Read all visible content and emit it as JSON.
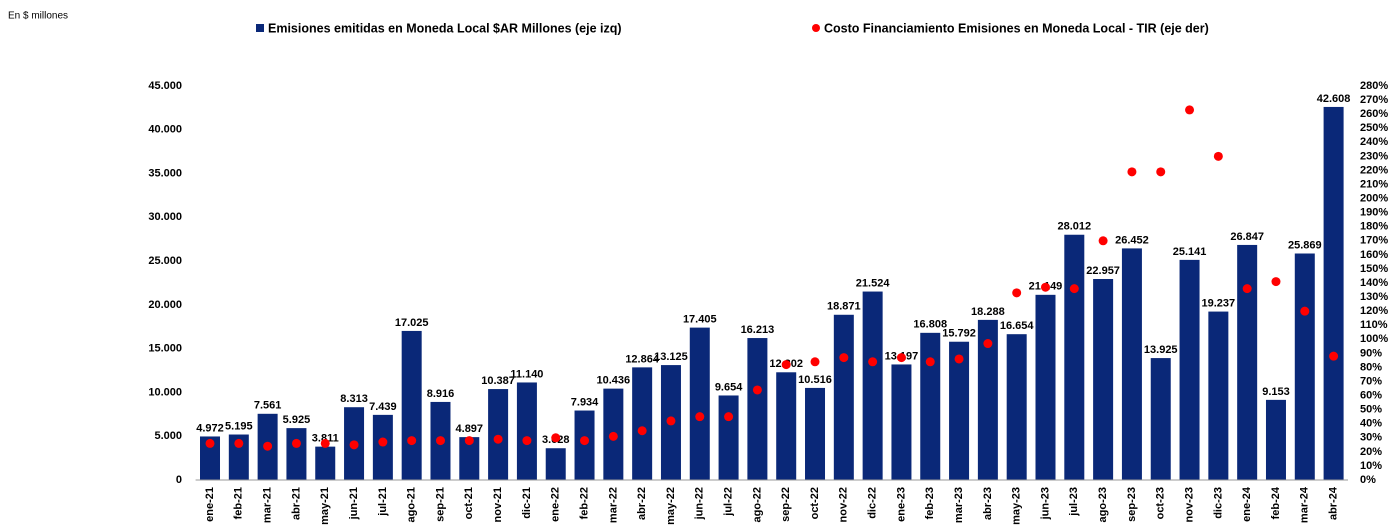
{
  "chart_data": {
    "type": "bar_scatter",
    "subtitle": "En $ millones",
    "categories": [
      "ene-21",
      "feb-21",
      "mar-21",
      "abr-21",
      "may-21",
      "jun-21",
      "jul-21",
      "ago-21",
      "sep-21",
      "oct-21",
      "nov-21",
      "dic-21",
      "ene-22",
      "feb-22",
      "mar-22",
      "abr-22",
      "may-22",
      "jun-22",
      "jul-22",
      "ago-22",
      "sep-22",
      "oct-22",
      "nov-22",
      "dic-22",
      "ene-23",
      "feb-23",
      "mar-23",
      "abr-23",
      "may-23",
      "jun-23",
      "jul-23",
      "ago-23",
      "sep-23",
      "oct-23",
      "nov-23",
      "dic-23",
      "ene-24",
      "feb-24",
      "mar-24",
      "abr-24"
    ],
    "series": [
      {
        "name": "Emisiones emitidas en Moneda Local $AR Millones (eje izq)",
        "color": "#0a2878",
        "kind": "bar",
        "values": [
          4972,
          5195,
          7561,
          5925,
          3811,
          8313,
          7439,
          17025,
          8916,
          4897,
          10387,
          11140,
          3628,
          7934,
          10436,
          12864,
          13125,
          17405,
          9654,
          16213,
          12302,
          10516,
          18871,
          21524,
          13197,
          16808,
          15792,
          18288,
          16654,
          21149,
          28012,
          22957,
          26452,
          13925,
          25141,
          19237,
          26847,
          9153,
          25869,
          42608
        ],
        "value_labels": [
          "4.972",
          "5.195",
          "7.561",
          "5.925",
          "3.811",
          "8.313",
          "7.439",
          "17.025",
          "8.916",
          "4.897",
          "10.387",
          "11.140",
          "3.628",
          "7.934",
          "10.436",
          "12.864",
          "13.125",
          "17.405",
          "9.654",
          "16.213",
          "12.302",
          "10.516",
          "18.871",
          "21.524",
          "13.197",
          "16.808",
          "15.792",
          "18.288",
          "16.654",
          "21.149",
          "28.012",
          "22.957",
          "26.452",
          "13.925",
          "25.141",
          "19.237",
          "26.847",
          "9.153",
          "25.869",
          "42.608"
        ]
      },
      {
        "name": "Costo Financiamiento Emisiones en Moneda Local - TIR (eje der)",
        "color": "#ff0000",
        "kind": "scatter",
        "axis": "y2",
        "values": [
          26,
          26,
          24,
          26,
          26,
          25,
          27,
          28,
          28,
          28,
          29,
          28,
          30,
          28,
          31,
          35,
          42,
          45,
          45,
          64,
          82,
          84,
          87,
          84,
          87,
          84,
          86,
          97,
          133,
          137,
          136,
          170,
          219,
          219,
          263,
          230,
          136,
          141,
          120,
          88
        ]
      }
    ],
    "ylim": [
      0,
      45000
    ],
    "yticks": [
      {
        "value": 0,
        "label": "0"
      },
      {
        "value": 5000,
        "label": "5.000"
      },
      {
        "value": 10000,
        "label": "10.000"
      },
      {
        "value": 15000,
        "label": "15.000"
      },
      {
        "value": 20000,
        "label": "20.000"
      },
      {
        "value": 25000,
        "label": "25.000"
      },
      {
        "value": 30000,
        "label": "30.000"
      },
      {
        "value": 35000,
        "label": "35.000"
      },
      {
        "value": 40000,
        "label": "40.000"
      },
      {
        "value": 45000,
        "label": "45.000"
      }
    ],
    "y2lim": [
      0,
      280
    ],
    "y2ticks": [
      {
        "value": 0,
        "label": "0%"
      },
      {
        "value": 10,
        "label": "10%"
      },
      {
        "value": 20,
        "label": "20%"
      },
      {
        "value": 30,
        "label": "30%"
      },
      {
        "value": 40,
        "label": "40%"
      },
      {
        "value": 50,
        "label": "50%"
      },
      {
        "value": 60,
        "label": "60%"
      },
      {
        "value": 70,
        "label": "70%"
      },
      {
        "value": 80,
        "label": "80%"
      },
      {
        "value": 90,
        "label": "90%"
      },
      {
        "value": 100,
        "label": "100%"
      },
      {
        "value": 110,
        "label": "110%"
      },
      {
        "value": 120,
        "label": "120%"
      },
      {
        "value": 130,
        "label": "130%"
      },
      {
        "value": 140,
        "label": "140%"
      },
      {
        "value": 150,
        "label": "150%"
      },
      {
        "value": 160,
        "label": "160%"
      },
      {
        "value": 170,
        "label": "170%"
      },
      {
        "value": 180,
        "label": "180%"
      },
      {
        "value": 190,
        "label": "190%"
      },
      {
        "value": 200,
        "label": "200%"
      },
      {
        "value": 210,
        "label": "210%"
      },
      {
        "value": 220,
        "label": "220%"
      },
      {
        "value": 230,
        "label": "230%"
      },
      {
        "value": 240,
        "label": "240%"
      },
      {
        "value": 250,
        "label": "250%"
      },
      {
        "value": 260,
        "label": "260%"
      },
      {
        "value": 270,
        "label": "270%"
      },
      {
        "value": 280,
        "label": "280%"
      }
    ],
    "grid": false,
    "legend": "top"
  }
}
